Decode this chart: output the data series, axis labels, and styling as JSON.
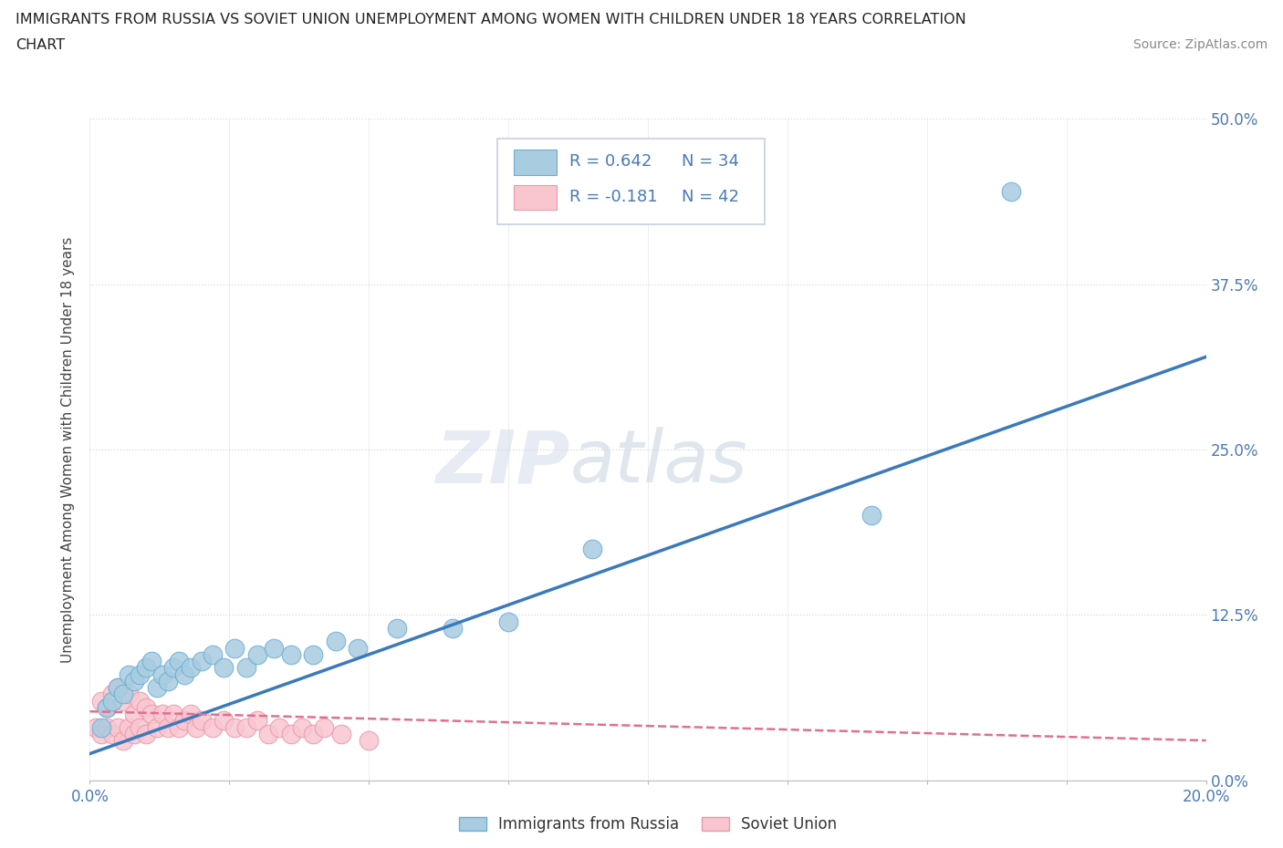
{
  "title_line1": "IMMIGRANTS FROM RUSSIA VS SOVIET UNION UNEMPLOYMENT AMONG WOMEN WITH CHILDREN UNDER 18 YEARS CORRELATION",
  "title_line2": "CHART",
  "source": "Source: ZipAtlas.com",
  "ylabel": "Unemployment Among Women with Children Under 18 years",
  "xlim": [
    0.0,
    0.2
  ],
  "ylim": [
    0.0,
    0.5
  ],
  "xticks": [
    0.0,
    0.025,
    0.05,
    0.075,
    0.1,
    0.125,
    0.15,
    0.175,
    0.2
  ],
  "ytick_labels": [
    "0.0%",
    "12.5%",
    "25.0%",
    "37.5%",
    "50.0%"
  ],
  "yticks": [
    0.0,
    0.125,
    0.25,
    0.375,
    0.5
  ],
  "russia_color": "#a8cce0",
  "russia_color_edge": "#6baed6",
  "russia_line_color": "#3a7abb",
  "soviet_color": "#f9c6d0",
  "soviet_color_edge": "#e899aa",
  "soviet_line_color": "#e07090",
  "legend_R_russia": "R = 0.642",
  "legend_N_russia": "N = 34",
  "legend_R_soviet": "R = -0.181",
  "legend_N_soviet": "N = 42",
  "background_color": "#ffffff",
  "grid_color": "#d0d8e8",
  "watermark_zip": "ZIP",
  "watermark_atlas": "atlas",
  "label_color": "#4a7ab5",
  "russia_x": [
    0.002,
    0.003,
    0.004,
    0.005,
    0.006,
    0.007,
    0.008,
    0.009,
    0.01,
    0.011,
    0.012,
    0.013,
    0.014,
    0.015,
    0.016,
    0.017,
    0.018,
    0.02,
    0.022,
    0.024,
    0.026,
    0.028,
    0.03,
    0.033,
    0.036,
    0.04,
    0.044,
    0.048,
    0.055,
    0.065,
    0.075,
    0.09,
    0.14,
    0.165
  ],
  "russia_y": [
    0.04,
    0.055,
    0.06,
    0.07,
    0.065,
    0.08,
    0.075,
    0.08,
    0.085,
    0.09,
    0.07,
    0.08,
    0.075,
    0.085,
    0.09,
    0.08,
    0.085,
    0.09,
    0.095,
    0.085,
    0.1,
    0.085,
    0.095,
    0.1,
    0.095,
    0.095,
    0.105,
    0.1,
    0.115,
    0.115,
    0.12,
    0.175,
    0.2,
    0.445
  ],
  "soviet_x": [
    0.001,
    0.002,
    0.002,
    0.003,
    0.003,
    0.004,
    0.004,
    0.005,
    0.005,
    0.006,
    0.006,
    0.007,
    0.007,
    0.008,
    0.008,
    0.009,
    0.009,
    0.01,
    0.01,
    0.011,
    0.012,
    0.013,
    0.014,
    0.015,
    0.016,
    0.017,
    0.018,
    0.019,
    0.02,
    0.022,
    0.024,
    0.026,
    0.028,
    0.03,
    0.032,
    0.034,
    0.036,
    0.038,
    0.04,
    0.042,
    0.045,
    0.05
  ],
  "soviet_y": [
    0.04,
    0.06,
    0.035,
    0.055,
    0.04,
    0.065,
    0.035,
    0.07,
    0.04,
    0.06,
    0.03,
    0.065,
    0.04,
    0.05,
    0.035,
    0.06,
    0.04,
    0.055,
    0.035,
    0.05,
    0.04,
    0.05,
    0.04,
    0.05,
    0.04,
    0.045,
    0.05,
    0.04,
    0.045,
    0.04,
    0.045,
    0.04,
    0.04,
    0.045,
    0.035,
    0.04,
    0.035,
    0.04,
    0.035,
    0.04,
    0.035,
    0.03
  ],
  "russia_trendline_x": [
    0.0,
    0.2
  ],
  "russia_trendline_y": [
    0.02,
    0.32
  ],
  "soviet_trendline_x": [
    0.0,
    0.2
  ],
  "soviet_trendline_y": [
    0.052,
    0.03
  ]
}
